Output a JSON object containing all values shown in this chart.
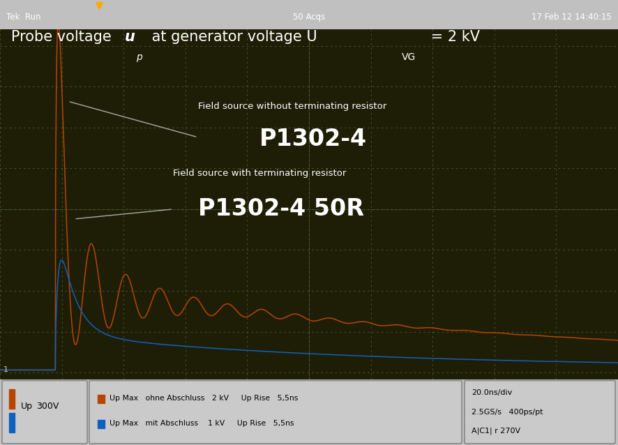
{
  "bg_color": "#1a1a00",
  "plot_bg_color": "#1c1c0a",
  "grid_color": "#4a6a2a",
  "orange_color": "#b84400",
  "blue_color": "#1060c0",
  "text_color_white": "#e8e8e8",
  "text_color_black": "#111111",
  "header_bg": "#1a1a1a",
  "footer_bg": "#c0c0c0",
  "title_main": "Probe voltage ",
  "title_u": "u",
  "title_sub_p": "p",
  "title_after": " at generator voltage U",
  "title_sub_VG": "VG",
  "title_end": " = 2 kV",
  "label1_small": "Field source without terminating resistor",
  "label1_large": "P1302-4",
  "label2_small": "Field source with terminating resistor",
  "label2_large": "P1302-4 50R",
  "header_left": "Tek  Run",
  "header_center": "50 Acqs",
  "header_right": "17 Feb 12 14:40:15",
  "footer_ch_label": "Up   300V",
  "footer_c1_text": "Up Max   ohne Abschluss   2 kV     Up Rise   5,5ns",
  "footer_c2_text": "Up Max   mit Abschluss    1 kV     Up Rise   5,5ns",
  "footer_r1": "20.0ns/div",
  "footer_r2": "2.5GS/s   400ps/pt",
  "footer_r3": "A|C1| r 270V"
}
